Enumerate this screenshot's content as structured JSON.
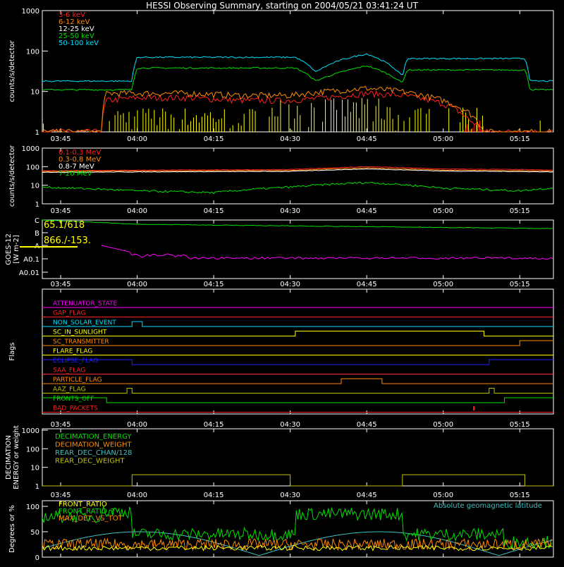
{
  "title": "HESSI Observing Summary, starting on 2004/05/21 03:41:24 UT",
  "time_ticks": [
    "03:45",
    "04:00",
    "04:15",
    "04:30",
    "04:45",
    "05:00",
    "05:15"
  ],
  "colors": {
    "red": "#ff2020",
    "orange": "#ff8c00",
    "yellow": "#ffff00",
    "green": "#00e000",
    "cyan": "#00e0ff",
    "magenta": "#ff00ff",
    "blue": "#2020ff",
    "white": "#ffffff",
    "olive": "#c0c000",
    "teal": "#40c0c0",
    "brown": "#b07020",
    "pink": "#ff4060"
  },
  "chart_data": [
    {
      "type": "line",
      "panel": "low-energy-rates",
      "ylabel": "counts/s/detector",
      "y_scale": "log",
      "yticks": [
        "1",
        "10",
        "100",
        "1000"
      ],
      "ylim": [
        1,
        1000
      ],
      "series": [
        {
          "name": "3-6 keV",
          "color": "red",
          "x": [
            "03:41",
            "03:53",
            "03:54",
            "04:00",
            "04:10",
            "04:20",
            "04:30",
            "04:37",
            "04:45",
            "04:52",
            "05:00",
            "05:05",
            "05:08"
          ],
          "y": [
            1,
            1,
            6,
            7,
            7,
            6,
            6,
            7,
            9,
            8,
            5,
            2,
            1
          ]
        },
        {
          "name": "6-12 keV",
          "color": "orange",
          "x": [
            "03:41",
            "03:53",
            "03:54",
            "04:00",
            "04:10",
            "04:20",
            "04:30",
            "04:37",
            "04:45",
            "04:52",
            "05:00",
            "05:05",
            "05:08"
          ],
          "y": [
            1,
            1,
            9,
            9,
            9,
            8,
            8,
            10,
            12,
            10,
            6,
            3,
            1
          ]
        },
        {
          "name": "12-25 keV",
          "color": "white",
          "x": [
            "03:41",
            "03:53",
            "04:50"
          ],
          "y": [
            1,
            1,
            1
          ]
        },
        {
          "name": "25-50 keV",
          "color": "green",
          "x": [
            "03:41",
            "03:59",
            "04:00",
            "04:31",
            "04:35",
            "04:40",
            "04:45",
            "04:52",
            "04:53",
            "05:16",
            "05:17",
            "05:21"
          ],
          "y": [
            11,
            11,
            38,
            38,
            18,
            30,
            43,
            16,
            34,
            34,
            11,
            11
          ]
        },
        {
          "name": "50-100 keV",
          "color": "cyan",
          "x": [
            "03:41",
            "03:59",
            "04:00",
            "04:31",
            "04:35",
            "04:40",
            "04:45",
            "04:52",
            "04:53",
            "05:16",
            "05:17",
            "05:21"
          ],
          "y": [
            18,
            18,
            70,
            70,
            30,
            60,
            85,
            23,
            65,
            65,
            18,
            18
          ]
        }
      ]
    },
    {
      "type": "line",
      "panel": "high-energy-rates",
      "ylabel": "counts/s/detector",
      "y_scale": "log",
      "yticks": [
        "1",
        "10",
        "100",
        "1000"
      ],
      "ylim": [
        1,
        1000
      ],
      "series": [
        {
          "name": "0.1-0.3 MeV",
          "color": "red",
          "x": [
            "03:41",
            "04:00",
            "04:30",
            "04:45",
            "05:00",
            "05:15",
            "05:21"
          ],
          "y": [
            60,
            65,
            70,
            100,
            75,
            70,
            65
          ]
        },
        {
          "name": "0.3-0.8 MeV",
          "color": "orange",
          "x": [
            "03:41",
            "04:00",
            "04:30",
            "04:45",
            "05:00",
            "05:15",
            "05:21"
          ],
          "y": [
            55,
            58,
            62,
            85,
            65,
            60,
            58
          ]
        },
        {
          "name": "0.8-7 MeV",
          "color": "white",
          "x": [
            "03:41",
            "04:00",
            "04:30",
            "04:45",
            "05:00",
            "05:15",
            "05:21"
          ],
          "y": [
            50,
            52,
            56,
            75,
            58,
            55,
            52
          ]
        },
        {
          "name": "7-20 MeV",
          "color": "green",
          "x": [
            "03:41",
            "04:00",
            "04:15",
            "04:30",
            "04:45",
            "05:00",
            "05:15",
            "05:21"
          ],
          "y": [
            8,
            5,
            4,
            8,
            14,
            7,
            5,
            7
          ]
        }
      ]
    },
    {
      "type": "line",
      "panel": "goes",
      "ylabel": "GOES-12\n[W m-2]",
      "y_scale": "log",
      "yticks": [
        "A0.01",
        "A0.1",
        "A",
        "B",
        "C"
      ],
      "annotations": [
        "65.1/618",
        "866./-153."
      ],
      "series": [
        {
          "name": "long",
          "color": "green",
          "x": [
            "03:41",
            "04:00",
            "04:30",
            "05:00",
            "05:21"
          ],
          "y": [
            "C",
            "C",
            "B+",
            "B+",
            "B+"
          ]
        },
        {
          "name": "short",
          "color": "magenta",
          "x": [
            "03:41",
            "03:53",
            "04:00",
            "04:30",
            "04:45",
            "05:00",
            "05:21"
          ],
          "y": [
            "A",
            "A",
            "A0.1",
            "A0.1",
            "A0.1",
            "A0.1",
            "A0.1"
          ]
        }
      ]
    },
    {
      "type": "line",
      "panel": "flags",
      "ylabel": "Flags",
      "flags": [
        {
          "name": "ATTENUATOR_STATE",
          "color": "magenta"
        },
        {
          "name": "GAP_FLAG",
          "color": "red"
        },
        {
          "name": "NON_SOLAR_EVENT",
          "color": "cyan"
        },
        {
          "name": "SC_IN_SUNLIGHT",
          "color": "yellow"
        },
        {
          "name": "SC_TRANSMITTER",
          "color": "orange"
        },
        {
          "name": "FLARE_FLAG",
          "color": "yellow"
        },
        {
          "name": "ECLIPSE_FLAG",
          "color": "blue"
        },
        {
          "name": "SAA_FLAG",
          "color": "red"
        },
        {
          "name": "PARTICLE_FLAG",
          "color": "orange"
        },
        {
          "name": "AAZ_FLAG",
          "color": "olive"
        },
        {
          "name": "FRONTS_OFF",
          "color": "green"
        },
        {
          "name": "BAD_PACKETS",
          "color": "red"
        }
      ]
    },
    {
      "type": "line",
      "panel": "decimation",
      "ylabel": "DECIMATION\nENERGY or weight",
      "y_scale": "log",
      "yticks": [
        "1",
        "10",
        "100",
        "1000"
      ],
      "series": [
        {
          "name": "DECIMATION_ENERGY",
          "color": "green"
        },
        {
          "name": "DECIMATION_WEIGHT",
          "color": "orange"
        },
        {
          "name": "REAR_DEC_CHAN/128",
          "color": "teal"
        },
        {
          "name": "REAR_DEC_WEIGHT",
          "color": "olive",
          "x": [
            "03:41",
            "04:00",
            "04:30",
            "04:52",
            "05:16",
            "05:21"
          ],
          "y": [
            1,
            4,
            1,
            4,
            1,
            4
          ]
        }
      ]
    },
    {
      "type": "line",
      "panel": "ratios",
      "ylabel": "Degrees or %",
      "yticks": [
        "0",
        "50",
        "100"
      ],
      "ylim": [
        0,
        100
      ],
      "series": [
        {
          "name": "FRONT_RATIO",
          "color": "yellow"
        },
        {
          "name": "FRONT_RATIO_?",
          "color": "green"
        },
        {
          "name": "MAX_DET_VS_TOT",
          "color": "orange"
        },
        {
          "name": "Absolute geomagnetic latitude",
          "color": "teal"
        }
      ]
    }
  ]
}
